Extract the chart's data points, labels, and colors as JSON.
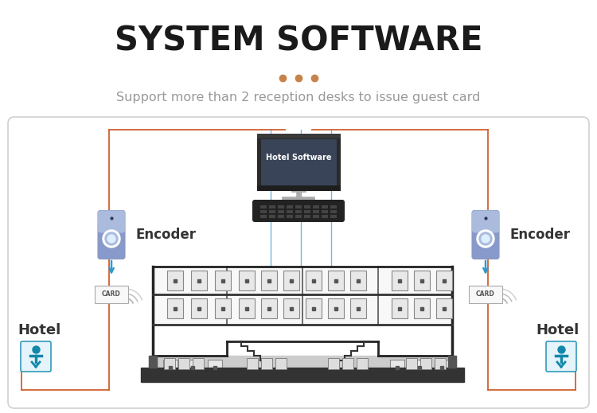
{
  "title": "SYSTEM SOFTWARE",
  "subtitle_dots": [
    "#c8834a",
    "#c8834a",
    "#c8834a"
  ],
  "subtitle_text": "Support more than 2 reception desks to issue guest card",
  "title_color": "#1a1a1a",
  "subtitle_color": "#999999",
  "bg_color": "#ffffff",
  "box_border_color": "#d0d0d0",
  "orange_line_color": "#d06030",
  "blue_arrow_color": "#3399cc",
  "encoder_box_color_top": "#7799cc",
  "encoder_box_color_bot": "#99aadd",
  "card_box_color": "#f5f5f5",
  "hotel_text_color": "#333333",
  "encoder_label": "Encoder",
  "card_label": "CARD",
  "hotel_label": "Hotel",
  "hotel_software_label": "Hotel Software",
  "figw": 7.5,
  "figh": 5.19,
  "dpi": 100
}
